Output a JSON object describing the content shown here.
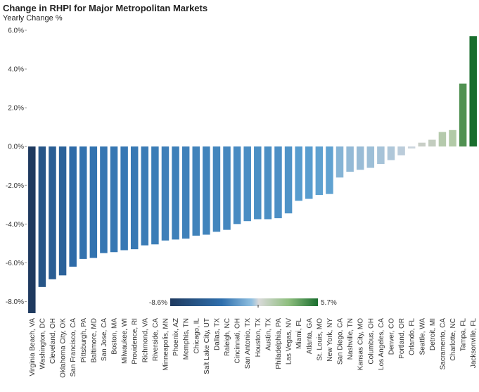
{
  "chart_data": {
    "type": "bar",
    "title": "Change in RHPI for Major Metropolitan Markets",
    "ylabel": "Yearly Change %",
    "ylim": [
      -8.6,
      6.0
    ],
    "yticks": [
      "6.0%",
      "4.0%",
      "2.0%",
      "0.0%",
      "-2.0%",
      "-4.0%",
      "-6.0%",
      "-8.0%"
    ],
    "grid": false,
    "categories": [
      "Virginia Beach, VA",
      "Washington, DC",
      "Cleveland, OH",
      "Oklahoma City, OK",
      "San Francisco, CA",
      "Pittsburgh, PA",
      "Baltimore, MD",
      "San Jose, CA",
      "Boston, MA",
      "Milwaukee, WI",
      "Providence, RI",
      "Richmond, VA",
      "Riverside, CA",
      "Minneapolis, MN",
      "Phoenix, AZ",
      "Memphis, TN",
      "Chicago, IL",
      "Salt Lake City, UT",
      "Dallas, TX",
      "Raleigh, NC",
      "Cincinnati, OH",
      "San Antonio, TX",
      "Houston, TX",
      "Austin, TX",
      "Philadelphia, PA",
      "Las Vegas, NV",
      "Miami, FL",
      "Atlanta, GA",
      "St. Louis, MO",
      "New York, NY",
      "San Diego, CA",
      "Nashville, TN",
      "Kansas City, MO",
      "Columbus, OH",
      "Los Angeles, CA",
      "Denver, CO",
      "Portland, OR",
      "Orlando, FL",
      "Seattle, WA",
      "Detroit, MI",
      "Sacramento, CA",
      "Charlotte, NC",
      "Tampa, FL",
      "Jacksonville, FL"
    ],
    "values": [
      -8.6,
      -7.25,
      -6.85,
      -6.65,
      -6.2,
      -5.8,
      -5.75,
      -5.5,
      -5.45,
      -5.35,
      -5.3,
      -5.1,
      -5.05,
      -4.85,
      -4.8,
      -4.75,
      -4.6,
      -4.55,
      -4.4,
      -4.3,
      -4.0,
      -3.85,
      -3.75,
      -3.75,
      -3.7,
      -3.45,
      -2.8,
      -2.7,
      -2.5,
      -2.45,
      -1.6,
      -1.3,
      -1.2,
      -1.1,
      -0.9,
      -0.7,
      -0.45,
      -0.1,
      0.2,
      0.35,
      0.75,
      0.85,
      3.25,
      5.7
    ],
    "legend": {
      "position": "bottom-center",
      "min_label": "-8.6%",
      "max_label": "5.7%"
    },
    "colors": {
      "negative_end": "#1f3a5f",
      "mid_blue": "#2f6fad",
      "light_blue": "#8fbfe0",
      "neutral": "#d0d0d0",
      "light_green": "#a8c89a",
      "positive_end": "#1a6e2e"
    }
  }
}
